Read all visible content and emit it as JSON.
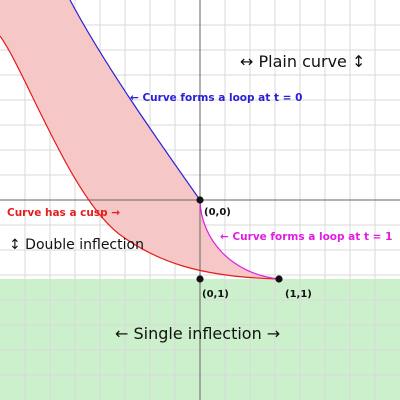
{
  "colors": {
    "background": "#ffffff",
    "grid": "#d9d9d9",
    "axis": "#666666",
    "green_region_fill": "#ccefcc",
    "red_region_fill": "#f5c7c7",
    "loop_t0_curve": "#2a20d8",
    "cusp_curve": "#e41d1d",
    "loop_t1_curve": "#e11de1",
    "point": "#111111",
    "text": "#111111"
  },
  "labels": {
    "plain_curve": "↔ Plain curve ↕",
    "loop_t0": "← Curve forms a loop at t = 0",
    "cusp": "Curve has a cusp →",
    "loop_t1": "← Curve forms a loop at t = 1",
    "double_inflection": "↕ Double inflection",
    "single_inflection": "← Single inflection →"
  },
  "points": [
    {
      "name": "origin",
      "label": "(0,0)"
    },
    {
      "name": "point-0-1",
      "label": "(0,1)"
    },
    {
      "name": "point-1-1",
      "label": "(1,1)"
    }
  ]
}
